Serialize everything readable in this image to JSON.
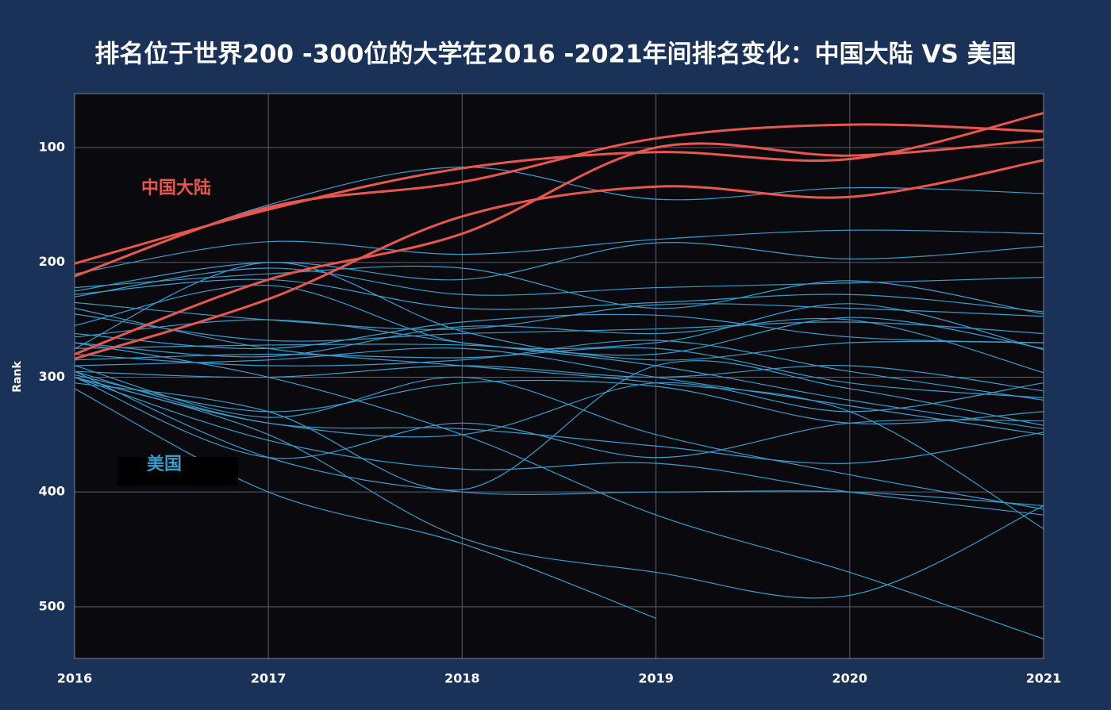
{
  "chart_data": {
    "type": "line",
    "title": "排名位于世界200 -300位的大学在2016 -2021年间排名变化：中国大陆 VS 美国",
    "y_label": "Rank",
    "x": [
      2016,
      2017,
      2018,
      2019,
      2020,
      2021
    ],
    "xlim": [
      2016,
      2021
    ],
    "xticks": [
      2016,
      2017,
      2018,
      2019,
      2020,
      2021
    ],
    "ylim": [
      545,
      53
    ],
    "yticks": [
      100,
      200,
      300,
      400,
      500
    ],
    "grid": true,
    "annotations": [
      {
        "text": "中国大陆",
        "color": "#e8574d"
      },
      {
        "text": "美国",
        "color": "#3a9ccc"
      }
    ],
    "series": [
      {
        "color": "#3a9ccc",
        "values": [
          212,
          150,
          117,
          145,
          135,
          140
        ]
      },
      {
        "color": "#3a9ccc",
        "values": [
          210,
          182,
          193,
          180,
          172,
          175
        ]
      },
      {
        "color": "#3a9ccc",
        "values": [
          225,
          200,
          215,
          183,
          197,
          186
        ]
      },
      {
        "color": "#3a9ccc",
        "values": [
          230,
          205,
          228,
          222,
          218,
          213
        ]
      },
      {
        "color": "#3a9ccc",
        "values": [
          222,
          210,
          205,
          240,
          216,
          245
        ]
      },
      {
        "color": "#3a9ccc",
        "values": [
          228,
          215,
          240,
          235,
          228,
          243
        ]
      },
      {
        "color": "#3a9ccc",
        "values": [
          235,
          250,
          258,
          237,
          240,
          247
        ]
      },
      {
        "color": "#3a9ccc",
        "values": [
          245,
          268,
          262,
          258,
          252,
          262
        ]
      },
      {
        "color": "#3a9ccc",
        "values": [
          255,
          220,
          270,
          270,
          236,
          276
        ]
      },
      {
        "color": "#3a9ccc",
        "values": [
          262,
          275,
          252,
          246,
          265,
          270
        ]
      },
      {
        "color": "#3a9ccc",
        "values": [
          270,
          282,
          256,
          262,
          250,
          296
        ]
      },
      {
        "color": "#3a9ccc",
        "values": [
          275,
          272,
          272,
          280,
          248,
          275
        ]
      },
      {
        "color": "#3a9ccc",
        "values": [
          280,
          290,
          285,
          268,
          295,
          320
        ]
      },
      {
        "color": "#3a9ccc",
        "values": [
          285,
          280,
          283,
          275,
          305,
          318
        ]
      },
      {
        "color": "#3a9ccc",
        "values": [
          290,
          285,
          275,
          300,
          325,
          350
        ]
      },
      {
        "color": "#3a9ccc",
        "values": [
          295,
          300,
          290,
          300,
          290,
          312
        ]
      },
      {
        "color": "#3a9ccc",
        "values": [
          298,
          330,
          305,
          308,
          340,
          330
        ]
      },
      {
        "color": "#3a9ccc",
        "values": [
          300,
          340,
          350,
          305,
          330,
          305
        ]
      },
      {
        "color": "#3a9ccc",
        "values": [
          300,
          370,
          340,
          370,
          340,
          338
        ]
      },
      {
        "color": "#3a9ccc",
        "values": [
          295,
          340,
          345,
          360,
          375,
          348
        ]
      },
      {
        "color": "#3a9ccc",
        "values": [
          305,
          330,
          398,
          290,
          310,
          342
        ]
      },
      {
        "color": "#3a9ccc",
        "values": [
          290,
          335,
          300,
          350,
          385,
          415
        ]
      },
      {
        "color": "#3a9ccc",
        "values": [
          300,
          355,
          380,
          375,
          400,
          420
        ]
      },
      {
        "color": "#3a9ccc",
        "values": [
          295,
          370,
          400,
          400,
          400,
          412
        ]
      },
      {
        "color": "#3a9ccc",
        "values": [
          300,
          350,
          440,
          470,
          490,
          412
        ]
      },
      {
        "color": "#3a9ccc",
        "values": [
          310,
          400,
          445,
          510,
          null,
          null
        ]
      },
      {
        "color": "#3a9ccc",
        "values": [
          270,
          300,
          350,
          420,
          470,
          528
        ]
      },
      {
        "color": "#3a9ccc",
        "values": [
          265,
          250,
          270,
          290,
          320,
          345
        ]
      },
      {
        "color": "#3a9ccc",
        "values": [
          240,
          275,
          290,
          305,
          330,
          432
        ]
      },
      {
        "color": "#3a9ccc",
        "values": [
          275,
          200,
          260,
          285,
          270,
          270
        ]
      },
      {
        "color": "#e8574d",
        "values": [
          201,
          154,
          118,
          104,
          110,
          70
        ]
      },
      {
        "color": "#e8574d",
        "values": [
          212,
          152,
          130,
          92,
          80,
          86
        ]
      },
      {
        "color": "#e8574d",
        "values": [
          280,
          215,
          175,
          100,
          107,
          93
        ]
      },
      {
        "color": "#e8574d",
        "values": [
          284,
          232,
          160,
          134,
          143,
          111
        ]
      }
    ]
  }
}
